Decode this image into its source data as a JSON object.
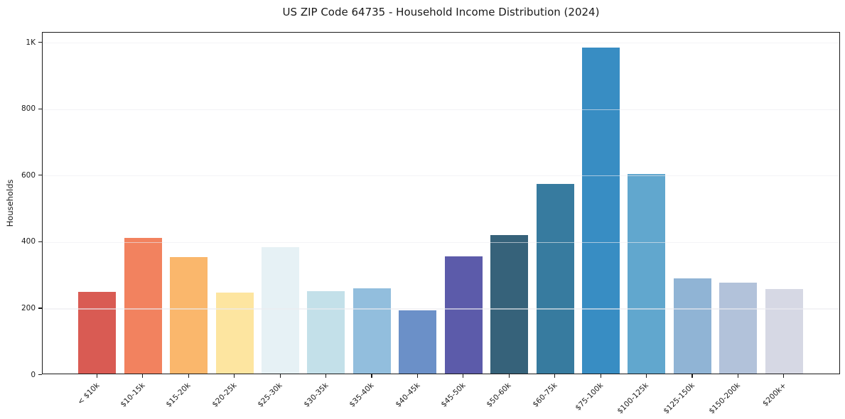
{
  "chart_data": {
    "type": "bar",
    "title": "US ZIP Code 64735 - Household Income Distribution (2024)",
    "xlabel": "",
    "ylabel": "Households",
    "ylim": [
      0,
      1030
    ],
    "grid": "horizontal",
    "legend": "none",
    "categories": [
      "< $10k",
      "$10-15k",
      "$15-20k",
      "$20-25k",
      "$25-30k",
      "$30-35k",
      "$35-40k",
      "$40-45k",
      "$45-50k",
      "$50-60k",
      "$60-75k",
      "$75-100k",
      "$100-125k",
      "$125-150k",
      "$150-200k",
      "$200k+"
    ],
    "values": [
      245,
      408,
      350,
      243,
      380,
      248,
      257,
      191,
      353,
      417,
      570,
      980,
      600,
      286,
      273,
      254
    ],
    "bar_colors": [
      "#d95b53",
      "#f2825f",
      "#fab76c",
      "#fde5a0",
      "#e6f1f5",
      "#c3e0e9",
      "#92bedd",
      "#6b90c8",
      "#5c5baa",
      "#36627a",
      "#377b9f",
      "#388dc3",
      "#61a7ce",
      "#90b4d5",
      "#b2c2da",
      "#d6d8e4"
    ],
    "yticks": [
      {
        "value": 0,
        "label": "0"
      },
      {
        "value": 200,
        "label": "200"
      },
      {
        "value": 400,
        "label": "400"
      },
      {
        "value": 600,
        "label": "600"
      },
      {
        "value": 800,
        "label": "800"
      },
      {
        "value": 1000,
        "label": "1K"
      }
    ]
  },
  "colors": {
    "spine": "#1a1a1a",
    "grid_on_white": "#ebebf0",
    "grid_over_bars": "rgba(235,235,240,0.62)",
    "text": "#1a1a1a",
    "background": "#ffffff"
  }
}
